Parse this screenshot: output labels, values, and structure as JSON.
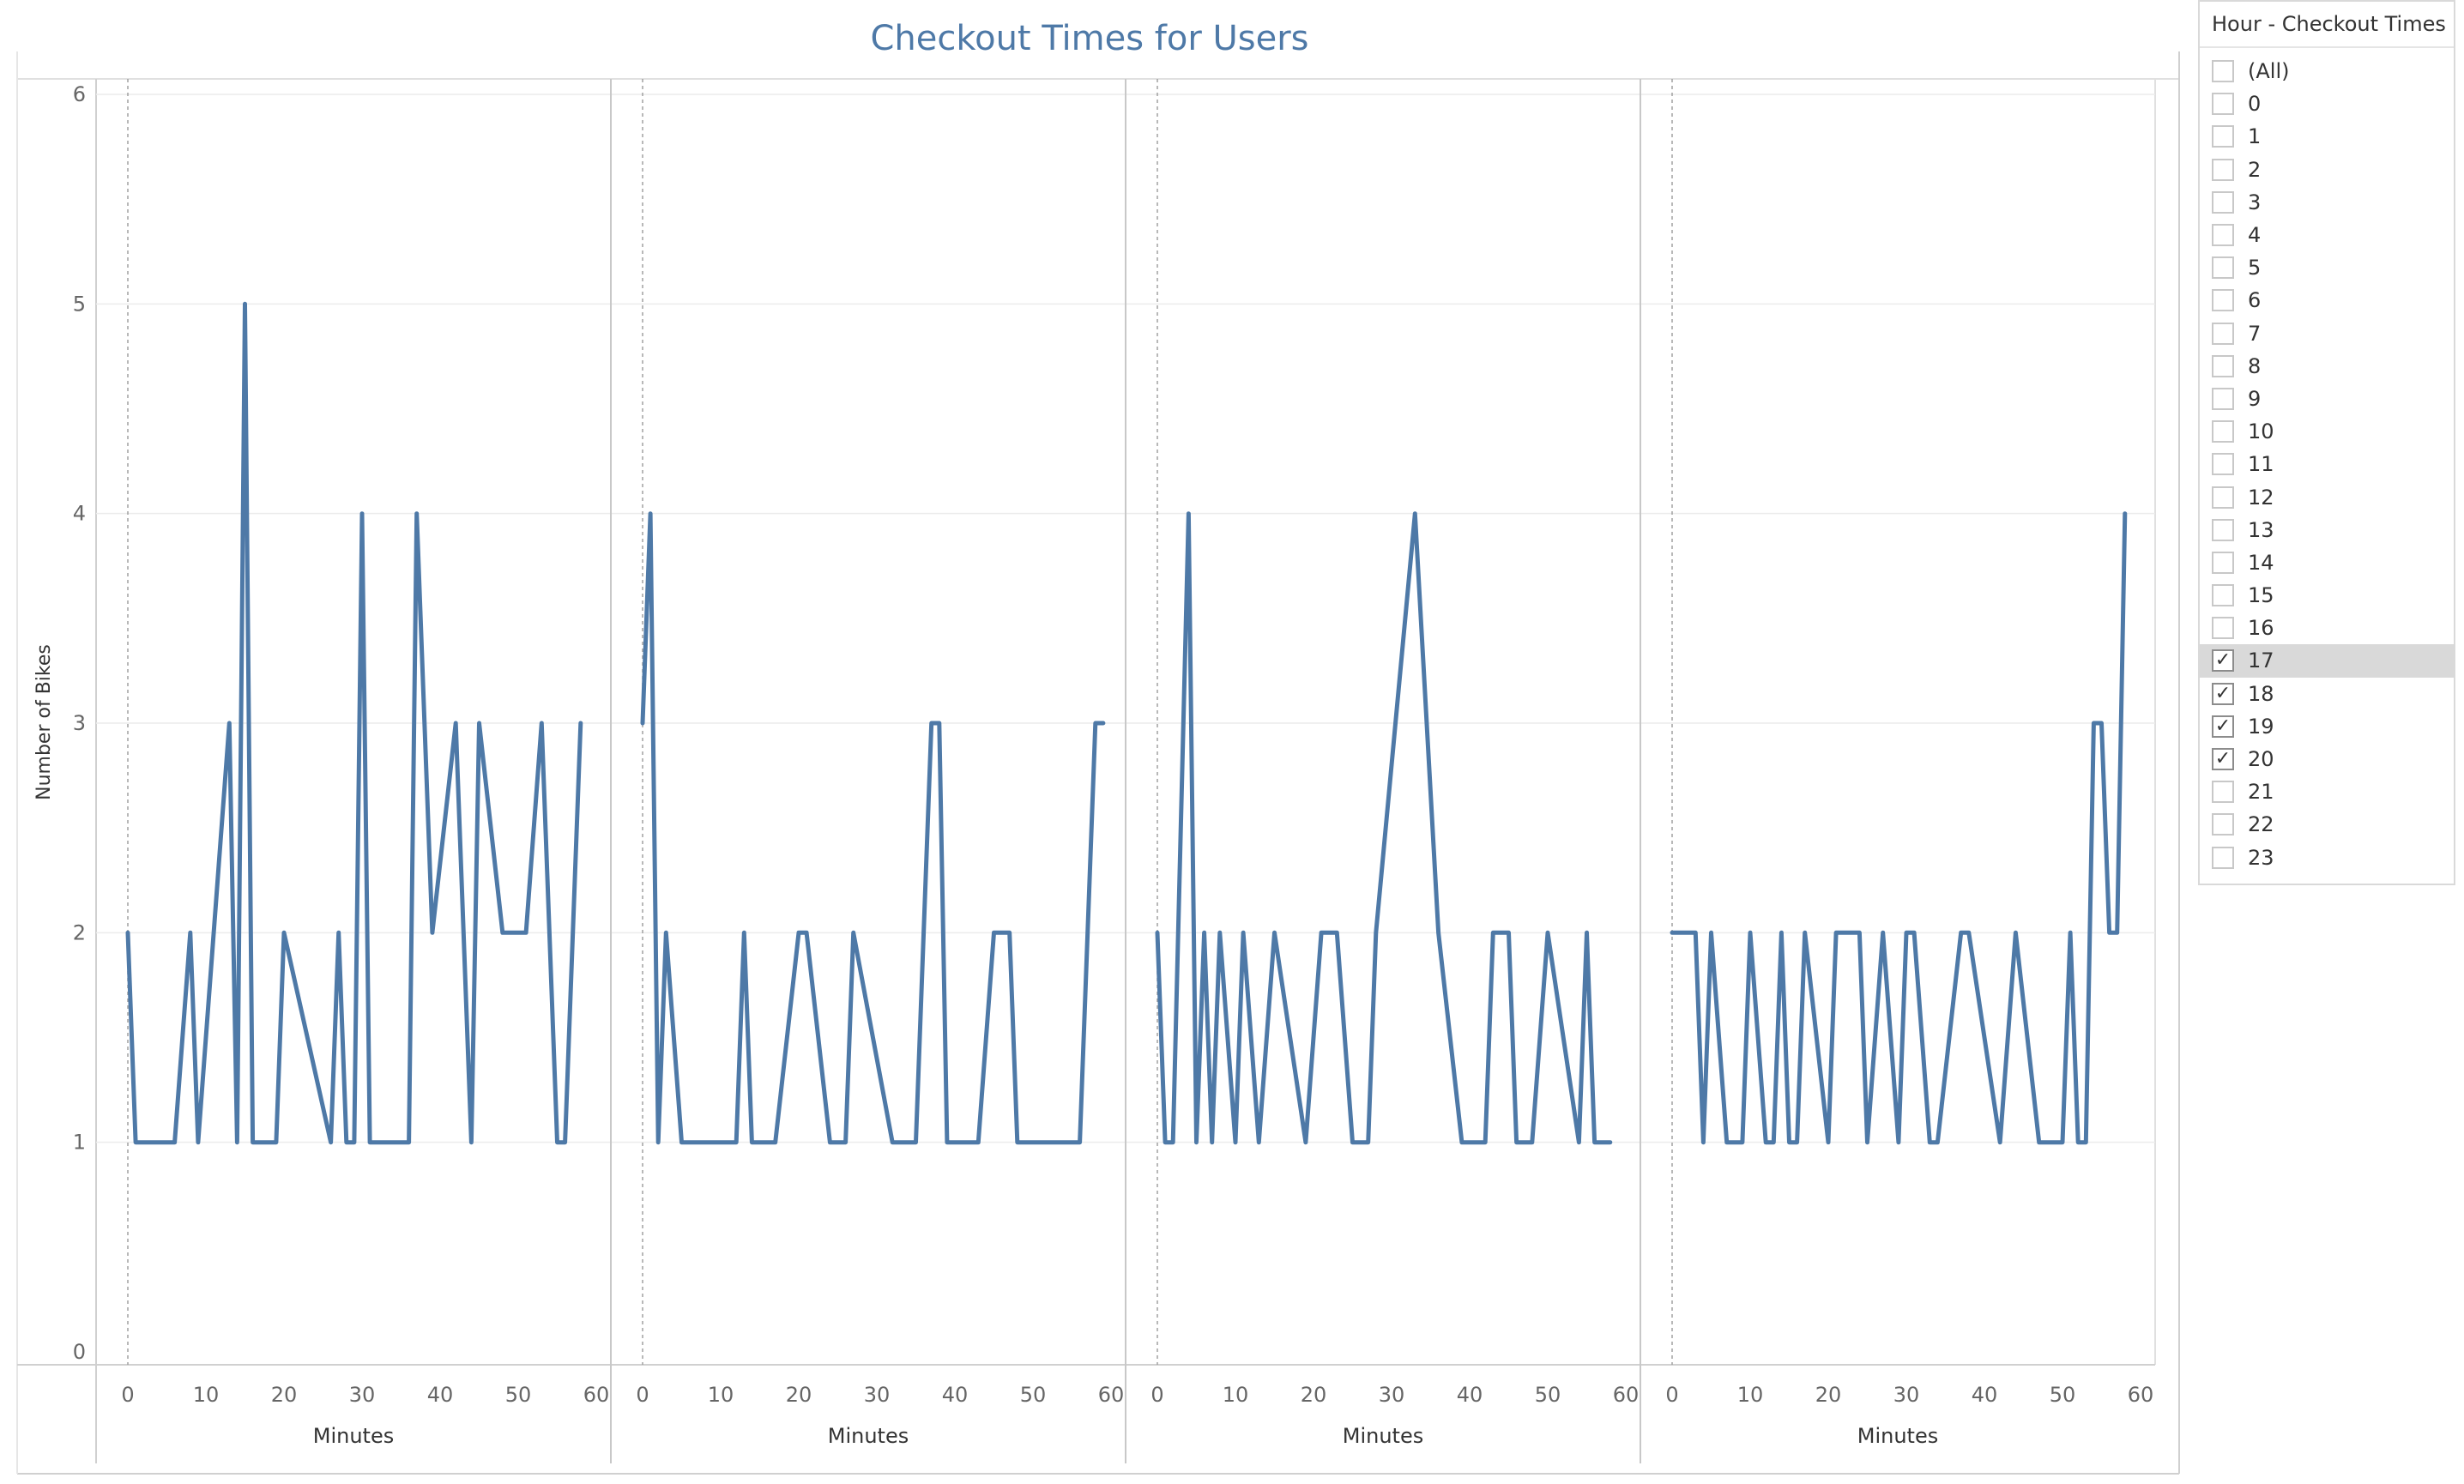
{
  "chart_data": {
    "type": "line",
    "title": "Checkout Times for Users",
    "ylabel": "Number of Bikes",
    "xlabel": "Minutes",
    "ylim": [
      0,
      6
    ],
    "yticks": [
      0,
      1,
      2,
      3,
      4,
      5,
      6
    ],
    "xlim": [
      0,
      60
    ],
    "xticks": [
      0,
      10,
      20,
      30,
      40,
      50,
      60
    ],
    "color": "#4E79A7",
    "panels": [
      {
        "name": "17",
        "x": [
          0,
          1,
          5,
          6,
          8,
          9,
          13,
          14,
          15,
          16,
          19,
          20,
          26,
          27,
          28,
          29,
          30,
          31,
          36,
          37,
          39,
          42,
          44,
          45,
          48,
          51,
          53,
          55,
          56,
          58
        ],
        "y": [
          2,
          1,
          1,
          1,
          2,
          1,
          3,
          1,
          5,
          1,
          1,
          2,
          1,
          2,
          1,
          1,
          4,
          1,
          1,
          4,
          2,
          3,
          1,
          3,
          2,
          2,
          3,
          1,
          1,
          3
        ]
      },
      {
        "name": "18",
        "x": [
          0,
          1,
          2,
          3,
          5,
          12,
          13,
          14,
          17,
          20,
          21,
          24,
          26,
          27,
          32,
          35,
          37,
          38,
          39,
          43,
          45,
          47,
          48,
          56,
          58,
          59
        ],
        "y": [
          3,
          4,
          1,
          2,
          1,
          1,
          2,
          1,
          1,
          2,
          2,
          1,
          1,
          2,
          1,
          1,
          3,
          3,
          1,
          1,
          2,
          2,
          1,
          1,
          3,
          3
        ]
      },
      {
        "name": "19",
        "x": [
          0,
          1,
          2,
          4,
          5,
          6,
          7,
          8,
          10,
          11,
          13,
          15,
          19,
          21,
          23,
          25,
          27,
          28,
          33,
          36,
          39,
          42,
          43,
          45,
          46,
          48,
          50,
          54,
          55,
          56,
          58
        ],
        "y": [
          2,
          1,
          1,
          4,
          1,
          2,
          1,
          2,
          1,
          2,
          1,
          2,
          1,
          2,
          2,
          1,
          1,
          2,
          4,
          2,
          1,
          1,
          2,
          2,
          1,
          1,
          2,
          1,
          2,
          1,
          1
        ]
      },
      {
        "name": "20",
        "x": [
          0,
          3,
          4,
          5,
          7,
          9,
          10,
          12,
          13,
          14,
          15,
          16,
          17,
          20,
          21,
          24,
          25,
          27,
          29,
          30,
          31,
          33,
          34,
          37,
          38,
          42,
          44,
          47,
          50,
          51,
          52,
          53,
          54,
          55,
          56,
          57,
          58
        ],
        "y": [
          2,
          2,
          1,
          2,
          1,
          1,
          2,
          1,
          1,
          2,
          1,
          1,
          2,
          1,
          2,
          2,
          1,
          2,
          1,
          2,
          2,
          1,
          1,
          2,
          2,
          1,
          2,
          1,
          1,
          2,
          1,
          1,
          3,
          3,
          2,
          2,
          4
        ]
      }
    ]
  },
  "filter": {
    "title": "Hour - Checkout Times ...",
    "items": [
      {
        "label": "(All)",
        "checked": false
      },
      {
        "label": "0",
        "checked": false
      },
      {
        "label": "1",
        "checked": false
      },
      {
        "label": "2",
        "checked": false
      },
      {
        "label": "3",
        "checked": false
      },
      {
        "label": "4",
        "checked": false
      },
      {
        "label": "5",
        "checked": false
      },
      {
        "label": "6",
        "checked": false
      },
      {
        "label": "7",
        "checked": false
      },
      {
        "label": "8",
        "checked": false
      },
      {
        "label": "9",
        "checked": false
      },
      {
        "label": "10",
        "checked": false
      },
      {
        "label": "11",
        "checked": false
      },
      {
        "label": "12",
        "checked": false
      },
      {
        "label": "13",
        "checked": false
      },
      {
        "label": "14",
        "checked": false
      },
      {
        "label": "15",
        "checked": false
      },
      {
        "label": "16",
        "checked": false
      },
      {
        "label": "17",
        "checked": true,
        "highlighted": true
      },
      {
        "label": "18",
        "checked": true
      },
      {
        "label": "19",
        "checked": true
      },
      {
        "label": "20",
        "checked": true
      },
      {
        "label": "21",
        "checked": false
      },
      {
        "label": "22",
        "checked": false
      },
      {
        "label": "23",
        "checked": false
      }
    ]
  }
}
